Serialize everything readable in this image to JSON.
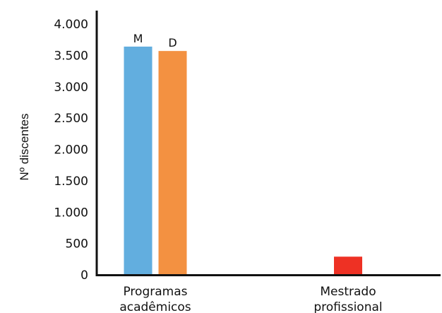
{
  "chart_data": {
    "type": "bar",
    "title": "",
    "xlabel": "",
    "ylabel": "Nº discentes",
    "ylim": [
      0,
      4000
    ],
    "y_ticks": [
      0,
      500,
      1000,
      1500,
      2000,
      2500,
      3000,
      3500,
      4000
    ],
    "y_tick_labels": [
      "0",
      "500",
      "1.000",
      "1.500",
      "2.000",
      "2.500",
      "3.000",
      "3.500",
      "4.000"
    ],
    "grid": false,
    "legend": "none",
    "categories": [
      {
        "label_lines": [
          "Programas",
          "acadêmicos"
        ]
      },
      {
        "label_lines": [
          "Mestrado",
          "profissional"
        ]
      }
    ],
    "bars": [
      {
        "category": 0,
        "label": "M",
        "value": 3640,
        "color": "#62AEDF"
      },
      {
        "category": 0,
        "label": "D",
        "value": 3570,
        "color": "#F39141"
      },
      {
        "category": 1,
        "label": "",
        "value": 290,
        "color": "#EE3124"
      }
    ]
  }
}
